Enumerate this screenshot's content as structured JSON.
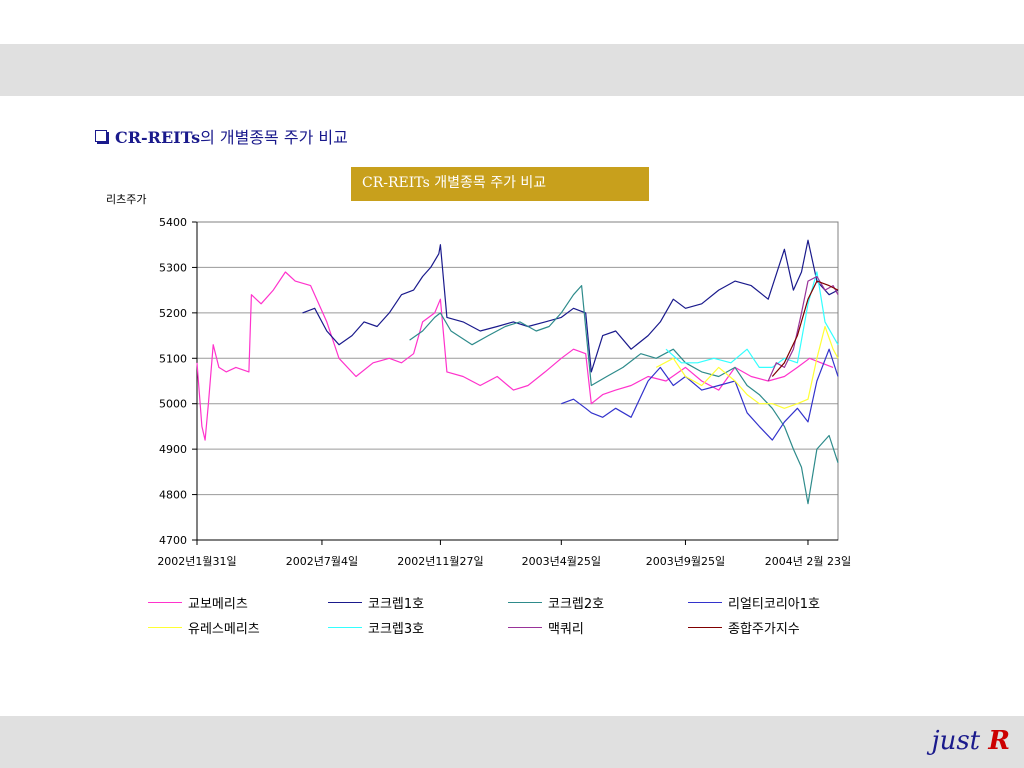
{
  "header": {
    "title_en": "CR-REITs",
    "title_ko": "의 개별종목 주가 비교"
  },
  "brand": {
    "word": "just",
    "letter": "R"
  },
  "chart_data": {
    "type": "line",
    "title": "CR-REITs 개별종목 주가 비교",
    "ylabel": "리츠주가",
    "xlabel": "",
    "ylim": [
      4700,
      5400
    ],
    "yticks": [
      4700,
      4800,
      4900,
      5000,
      5100,
      5200,
      5300,
      5400
    ],
    "xlim": [
      "2002-01-31",
      "2004-03-31"
    ],
    "xtick_labels": [
      "2002년1월31일",
      "2002년7월4일",
      "2002년11월27일",
      "2003년4월25일",
      "2003년9월25일",
      "2004년 2월 23일"
    ],
    "xtick_dates": [
      "2002-01-31",
      "2002-07-04",
      "2002-11-27",
      "2003-04-25",
      "2003-09-25",
      "2004-02-23"
    ],
    "grid": "horizontal",
    "legend": "bottom",
    "series": [
      {
        "name": "교보메리츠",
        "color": "#ff33cc",
        "x": [
          "2002-01-31",
          "2002-02-06",
          "2002-02-10",
          "2002-02-14",
          "2002-02-20",
          "2002-02-27",
          "2002-03-08",
          "2002-03-20",
          "2002-04-05",
          "2002-04-08",
          "2002-04-20",
          "2002-05-05",
          "2002-05-20",
          "2002-06-01",
          "2002-06-20",
          "2002-07-10",
          "2002-07-25",
          "2002-08-15",
          "2002-09-05",
          "2002-09-25",
          "2002-10-10",
          "2002-10-25",
          "2002-11-05",
          "2002-11-20",
          "2002-11-27",
          "2002-12-05",
          "2002-12-25",
          "2003-01-15",
          "2003-02-05",
          "2003-02-25",
          "2003-03-15",
          "2003-04-05",
          "2003-04-25",
          "2003-05-10",
          "2003-05-25",
          "2003-06-01",
          "2003-06-15",
          "2003-07-01",
          "2003-07-20",
          "2003-08-10",
          "2003-09-01",
          "2003-09-25",
          "2003-10-15",
          "2003-11-05",
          "2003-11-25",
          "2003-12-15",
          "2004-01-05",
          "2004-01-25",
          "2004-02-10",
          "2004-02-25",
          "2004-03-10",
          "2004-03-25"
        ],
        "values": [
          5090,
          4950,
          4920,
          5000,
          5130,
          5080,
          5070,
          5080,
          5070,
          5240,
          5220,
          5250,
          5290,
          5270,
          5260,
          5180,
          5100,
          5060,
          5090,
          5100,
          5090,
          5110,
          5180,
          5200,
          5230,
          5070,
          5060,
          5040,
          5060,
          5030,
          5040,
          5070,
          5100,
          5120,
          5110,
          5000,
          5020,
          5030,
          5040,
          5060,
          5050,
          5080,
          5050,
          5030,
          5080,
          5060,
          5050,
          5060,
          5080,
          5100,
          5090,
          5080
        ]
      },
      {
        "name": "코크렙1호",
        "color": "#1a1a8c",
        "x": [
          "2002-06-10",
          "2002-06-25",
          "2002-07-10",
          "2002-07-25",
          "2002-08-10",
          "2002-08-25",
          "2002-09-10",
          "2002-09-25",
          "2002-10-10",
          "2002-10-25",
          "2002-11-05",
          "2002-11-15",
          "2002-11-25",
          "2002-11-27",
          "2002-12-05",
          "2002-12-25",
          "2003-01-15",
          "2003-02-05",
          "2003-02-25",
          "2003-03-15",
          "2003-04-05",
          "2003-04-25",
          "2003-05-10",
          "2003-05-25",
          "2003-06-01",
          "2003-06-15",
          "2003-07-01",
          "2003-07-20",
          "2003-08-10",
          "2003-08-25",
          "2003-09-10",
          "2003-09-25",
          "2003-10-15",
          "2003-11-05",
          "2003-11-25",
          "2003-12-15",
          "2004-01-05",
          "2004-01-25",
          "2004-02-05",
          "2004-02-15",
          "2004-02-23",
          "2004-03-05",
          "2004-03-20",
          "2004-03-31"
        ],
        "values": [
          5200,
          5210,
          5160,
          5130,
          5150,
          5180,
          5170,
          5200,
          5240,
          5250,
          5280,
          5300,
          5330,
          5350,
          5190,
          5180,
          5160,
          5170,
          5180,
          5170,
          5180,
          5190,
          5210,
          5200,
          5070,
          5150,
          5160,
          5120,
          5150,
          5180,
          5230,
          5210,
          5220,
          5250,
          5270,
          5260,
          5230,
          5340,
          5250,
          5290,
          5360,
          5270,
          5240,
          5250
        ]
      },
      {
        "name": "코크렙2호",
        "color": "#2e8b8b",
        "x": [
          "2002-10-20",
          "2002-11-05",
          "2002-11-20",
          "2002-11-27",
          "2002-12-10",
          "2003-01-05",
          "2003-01-25",
          "2003-02-15",
          "2003-03-05",
          "2003-03-25",
          "2003-04-10",
          "2003-04-25",
          "2003-05-10",
          "2003-05-20",
          "2003-06-01",
          "2003-06-20",
          "2003-07-10",
          "2003-08-01",
          "2003-08-20",
          "2003-09-10",
          "2003-09-25",
          "2003-10-15",
          "2003-11-05",
          "2003-11-25",
          "2003-12-10",
          "2003-12-25",
          "2004-01-10",
          "2004-01-25",
          "2004-02-05",
          "2004-02-15",
          "2004-02-23",
          "2004-03-05",
          "2004-03-20",
          "2004-03-31"
        ],
        "values": [
          5140,
          5160,
          5190,
          5200,
          5160,
          5130,
          5150,
          5170,
          5180,
          5160,
          5170,
          5200,
          5240,
          5260,
          5040,
          5060,
          5080,
          5110,
          5100,
          5120,
          5090,
          5070,
          5060,
          5080,
          5040,
          5020,
          4990,
          4950,
          4900,
          4860,
          4780,
          4900,
          4930,
          4870
        ]
      },
      {
        "name": "리얼티코리아1호",
        "color": "#3333cc",
        "x": [
          "2003-04-25",
          "2003-05-10",
          "2003-05-25",
          "2003-06-01",
          "2003-06-15",
          "2003-07-01",
          "2003-07-20",
          "2003-08-10",
          "2003-08-25",
          "2003-09-10",
          "2003-09-25",
          "2003-10-15",
          "2003-11-05",
          "2003-11-25",
          "2003-12-10",
          "2003-12-25",
          "2004-01-10",
          "2004-01-25",
          "2004-02-10",
          "2004-02-23",
          "2004-03-05",
          "2004-03-20",
          "2004-03-31"
        ],
        "values": [
          5000,
          5010,
          4990,
          4980,
          4970,
          4990,
          4970,
          5050,
          5080,
          5040,
          5060,
          5030,
          5040,
          5050,
          4980,
          4950,
          4920,
          4960,
          4990,
          4960,
          5050,
          5120,
          5060
        ]
      },
      {
        "name": "유레스메리츠",
        "color": "#ffff33",
        "x": [
          "2003-08-20",
          "2003-09-10",
          "2003-09-25",
          "2003-10-15",
          "2003-11-05",
          "2003-11-25",
          "2003-12-10",
          "2003-12-25",
          "2004-01-10",
          "2004-01-25",
          "2004-02-10",
          "2004-02-23",
          "2004-03-05",
          "2004-03-15",
          "2004-03-25",
          "2004-03-31"
        ],
        "values": [
          5080,
          5100,
          5060,
          5040,
          5080,
          5050,
          5020,
          5000,
          5000,
          4990,
          5000,
          5010,
          5100,
          5170,
          5120,
          5100
        ]
      },
      {
        "name": "코크렙3호",
        "color": "#33ffff",
        "x": [
          "2003-09-01",
          "2003-09-20",
          "2003-10-10",
          "2003-10-30",
          "2003-11-20",
          "2003-12-10",
          "2003-12-25",
          "2004-01-10",
          "2004-01-25",
          "2004-02-10",
          "2004-02-23",
          "2004-03-05",
          "2004-03-15",
          "2004-03-31"
        ],
        "values": [
          5120,
          5090,
          5090,
          5100,
          5090,
          5120,
          5080,
          5080,
          5100,
          5090,
          5220,
          5290,
          5180,
          5130
        ]
      },
      {
        "name": "맥쿼리",
        "color": "#993399",
        "x": [
          "2004-01-05",
          "2004-01-15",
          "2004-01-25",
          "2004-02-05",
          "2004-02-15",
          "2004-02-23",
          "2004-03-05",
          "2004-03-15",
          "2004-03-25",
          "2004-03-31"
        ],
        "values": [
          5050,
          5090,
          5080,
          5120,
          5200,
          5270,
          5280,
          5250,
          5260,
          5240
        ]
      },
      {
        "name": "종합주가지수",
        "color": "#800000",
        "x": [
          "2004-01-10",
          "2004-01-25",
          "2004-02-10",
          "2004-02-23",
          "2004-03-05",
          "2004-03-20",
          "2004-03-31"
        ],
        "values": [
          5060,
          5090,
          5150,
          5230,
          5270,
          5260,
          5250
        ]
      }
    ]
  }
}
